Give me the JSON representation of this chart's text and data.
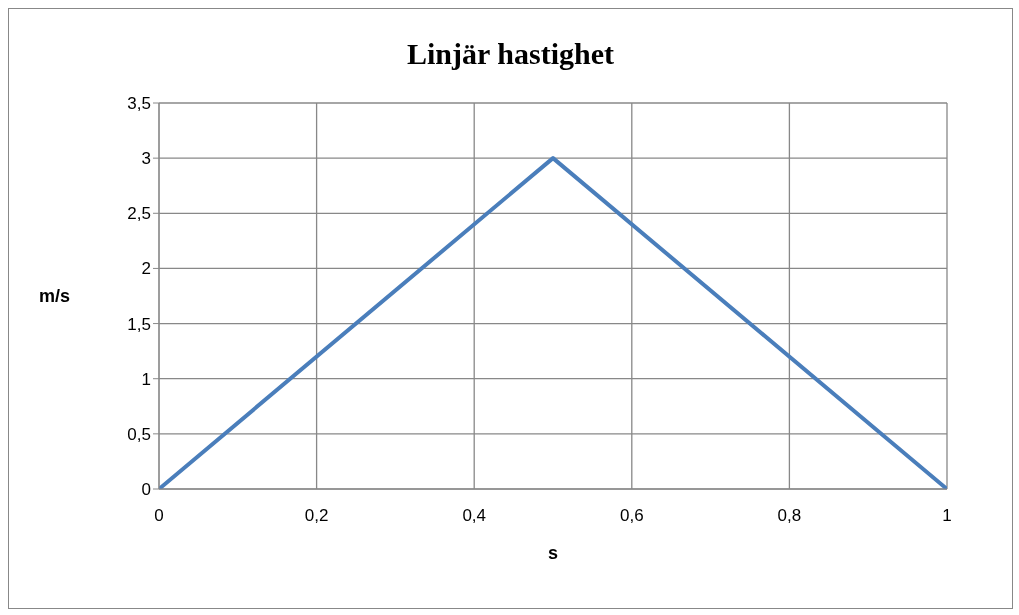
{
  "chart_data": {
    "type": "line",
    "title": "Linjär hastighet",
    "xlabel": "s",
    "ylabel": "m/s",
    "x": [
      0,
      0.5,
      1
    ],
    "series": [
      {
        "color": "#4a7ebb",
        "values": [
          0,
          3,
          0
        ]
      }
    ],
    "xlim": [
      0,
      1
    ],
    "xticks": [
      0,
      {
        "value": 0.2,
        "label": "0,2"
      },
      {
        "value": 0.4,
        "label": "0,4"
      },
      {
        "value": 0.6,
        "label": "0,6"
      },
      {
        "value": 0.8,
        "label": "0,8"
      },
      1
    ],
    "ylim": [
      0,
      3.5
    ],
    "yticks": [
      0,
      {
        "value": 0.5,
        "label": "0,5"
      },
      1,
      {
        "value": 1.5,
        "label": "1,5"
      },
      2,
      {
        "value": 2.5,
        "label": "2,5"
      },
      3,
      {
        "value": 3.5,
        "label": "3,5"
      }
    ],
    "grid": true,
    "marker": "none",
    "line_style": "solid"
  }
}
